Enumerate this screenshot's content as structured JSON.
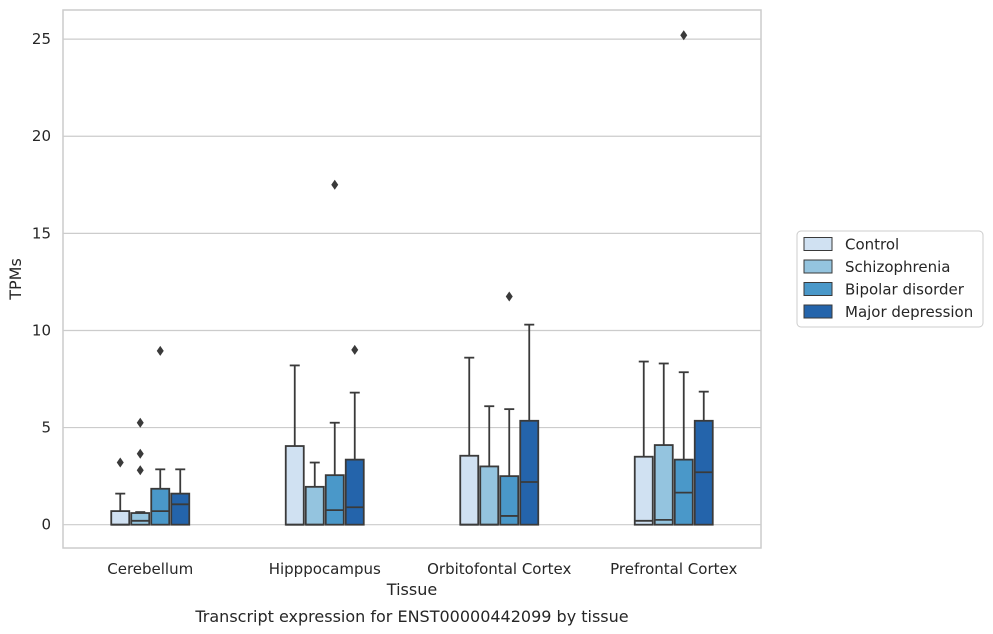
{
  "chart_data": {
    "type": "box",
    "caption": "Transcript expression for ENST00000442099 by tissue",
    "xlabel": "Tissue",
    "ylabel": "TPMs",
    "ylim": [
      -1.2,
      26.5
    ],
    "yticks": [
      0,
      5,
      10,
      15,
      20,
      25
    ],
    "grid": "horizontal",
    "legend_position": "right",
    "categories": [
      "Cerebellum",
      "Hipppocampus",
      "Orbitofontal Cortex",
      "Prefrontal Cortex"
    ],
    "series": [
      {
        "name": "Control",
        "color": "#d0e1f2",
        "boxes": [
          {
            "q1": 0,
            "median": 0,
            "q3": 0.7,
            "whisker_low": 0,
            "whisker_high": 1.6,
            "outliers": [
              3.2
            ]
          },
          {
            "q1": 0,
            "median": 0,
            "q3": 4.05,
            "whisker_low": 0,
            "whisker_high": 8.2,
            "outliers": []
          },
          {
            "q1": 0,
            "median": 0,
            "q3": 3.55,
            "whisker_low": 0,
            "whisker_high": 8.6,
            "outliers": []
          },
          {
            "q1": 0,
            "median": 0.2,
            "q3": 3.5,
            "whisker_low": 0,
            "whisker_high": 8.4,
            "outliers": []
          }
        ]
      },
      {
        "name": "Schizophrenia",
        "color": "#94c4df",
        "boxes": [
          {
            "q1": 0,
            "median": 0.2,
            "q3": 0.6,
            "whisker_low": 0,
            "whisker_high": 0.65,
            "outliers": [
              2.8,
              3.65,
              5.25
            ]
          },
          {
            "q1": 0,
            "median": 0,
            "q3": 1.95,
            "whisker_low": 0,
            "whisker_high": 3.2,
            "outliers": []
          },
          {
            "q1": 0,
            "median": 0,
            "q3": 3.0,
            "whisker_low": 0,
            "whisker_high": 6.1,
            "outliers": []
          },
          {
            "q1": 0,
            "median": 0.25,
            "q3": 4.1,
            "whisker_low": 0,
            "whisker_high": 8.3,
            "outliers": []
          }
        ]
      },
      {
        "name": "Bipolar disorder",
        "color": "#4a98c9",
        "boxes": [
          {
            "q1": 0,
            "median": 0.7,
            "q3": 1.85,
            "whisker_low": 0,
            "whisker_high": 2.85,
            "outliers": [
              8.95
            ]
          },
          {
            "q1": 0,
            "median": 0.75,
            "q3": 2.55,
            "whisker_low": 0,
            "whisker_high": 5.25,
            "outliers": [
              17.5
            ]
          },
          {
            "q1": 0,
            "median": 0.45,
            "q3": 2.5,
            "whisker_low": 0,
            "whisker_high": 5.95,
            "outliers": [
              11.75
            ]
          },
          {
            "q1": 0,
            "median": 1.65,
            "q3": 3.35,
            "whisker_low": 0,
            "whisker_high": 7.85,
            "outliers": [
              25.2
            ]
          }
        ]
      },
      {
        "name": "Major depression",
        "color": "#2464ab",
        "boxes": [
          {
            "q1": 0,
            "median": 1.05,
            "q3": 1.6,
            "whisker_low": 0,
            "whisker_high": 2.85,
            "outliers": []
          },
          {
            "q1": 0,
            "median": 0.9,
            "q3": 3.35,
            "whisker_low": 0,
            "whisker_high": 6.8,
            "outliers": [
              9.0
            ]
          },
          {
            "q1": 0,
            "median": 2.2,
            "q3": 5.35,
            "whisker_low": 0,
            "whisker_high": 10.3,
            "outliers": []
          },
          {
            "q1": 0,
            "median": 2.7,
            "q3": 5.35,
            "whisker_low": 0,
            "whisker_high": 6.85,
            "outliers": []
          }
        ]
      }
    ]
  }
}
